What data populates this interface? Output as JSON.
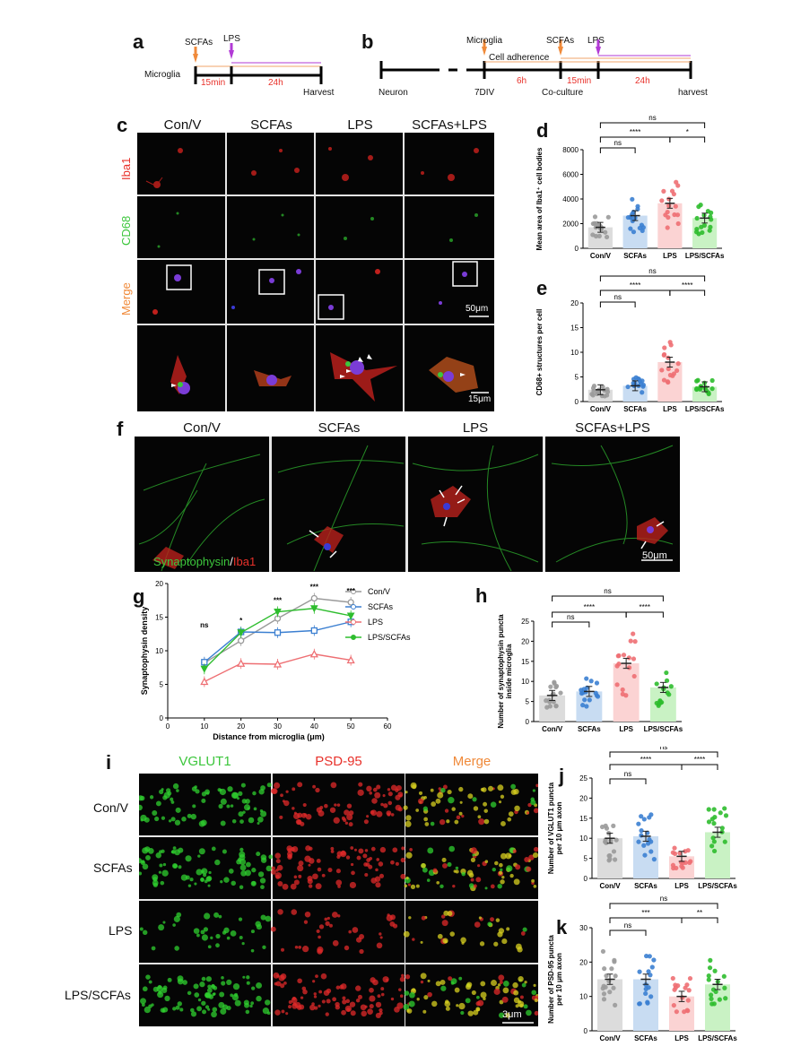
{
  "panel_labels": {
    "a": "a",
    "b": "b",
    "c": "c",
    "d": "d",
    "e": "e",
    "f": "f",
    "g": "g",
    "h": "h",
    "i": "i",
    "j": "j",
    "k": "k"
  },
  "panel_a": {
    "scfas": "SCFAs",
    "lps": "LPS",
    "microglia": "Microglia",
    "t1": "15min",
    "t2": "24h",
    "harvest": "Harvest"
  },
  "panel_b": {
    "microglia": "Microglia",
    "scfas": "SCFAs",
    "lps": "LPS",
    "cell_adherence": "Cell adherence",
    "neuron": "Neuron",
    "div": "7DIV",
    "t1": "6h",
    "coculture": "Co-culture",
    "t2": "15min",
    "t3": "24h",
    "harvest": "harvest"
  },
  "panel_c": {
    "cols": [
      "Con/V",
      "SCFAs",
      "LPS",
      "SCFAs+LPS"
    ],
    "rows": [
      "Iba1",
      "CD68",
      "Merge"
    ],
    "scale1": "50μm",
    "scale2": "15μm"
  },
  "panel_f": {
    "cols": [
      "Con/V",
      "SCFAs",
      "LPS",
      "SCFAs+LPS"
    ],
    "label_green": "Synaptophysin",
    "label_sep": "/",
    "label_red": "Iba1",
    "scale": "50μm"
  },
  "panel_i": {
    "cols": [
      "VGLUT1",
      "PSD-95",
      "Merge"
    ],
    "rows": [
      "Con/V",
      "SCFAs",
      "LPS",
      "LPS/SCFAs"
    ],
    "scale": "3μm"
  },
  "chart_data": [
    {
      "id": "d",
      "type": "bar",
      "categories": [
        "Con/V",
        "SCFAs",
        "LPS",
        "LPS/SCFAs"
      ],
      "values": [
        1700,
        2650,
        3650,
        2450
      ],
      "ylabel": "Mean area of Iba1⁺ cell bodies",
      "ylim": [
        0,
        8000
      ],
      "yticks": [
        0,
        2000,
        4000,
        6000,
        8000
      ],
      "sig": [
        {
          "from": 0,
          "to": 1,
          "label": "ns"
        },
        {
          "from": 0,
          "to": 2,
          "label": "****"
        },
        {
          "from": 2,
          "to": 3,
          "label": "*"
        },
        {
          "from": 0,
          "to": 3,
          "label": "ns"
        }
      ]
    },
    {
      "id": "e",
      "type": "bar",
      "categories": [
        "Con/V",
        "SCFAs",
        "LPS",
        "LPS/SCFAs"
      ],
      "values": [
        2.4,
        3.2,
        8.0,
        3.0
      ],
      "ylabel": "CD68+ structures per cell",
      "ylim": [
        0,
        20
      ],
      "yticks": [
        0,
        5,
        10,
        15,
        20
      ],
      "sig": [
        {
          "from": 0,
          "to": 1,
          "label": "ns"
        },
        {
          "from": 0,
          "to": 2,
          "label": "****"
        },
        {
          "from": 2,
          "to": 3,
          "label": "****"
        },
        {
          "from": 0,
          "to": 3,
          "label": "ns"
        }
      ]
    },
    {
      "id": "g",
      "type": "line",
      "x": [
        10,
        20,
        30,
        40,
        50
      ],
      "xlabel": "Distance from microglia (μm)",
      "ylabel": "Synaptophysin density",
      "xlim": [
        0,
        60
      ],
      "ylim": [
        0,
        20
      ],
      "xticks": [
        0,
        10,
        20,
        30,
        40,
        50,
        60
      ],
      "yticks": [
        0,
        5,
        10,
        15,
        20
      ],
      "series": [
        {
          "name": "Con/V",
          "values": [
            8.2,
            11.5,
            14.8,
            17.8,
            17.2
          ]
        },
        {
          "name": "SCFAs",
          "values": [
            8.3,
            12.8,
            12.7,
            13.0,
            14.3
          ]
        },
        {
          "name": "LPS",
          "values": [
            5.4,
            8.1,
            8.0,
            9.5,
            8.6
          ]
        },
        {
          "name": "LPS/SCFAs",
          "values": [
            7.3,
            12.7,
            15.8,
            16.3,
            15.2
          ]
        }
      ],
      "annotations": [
        {
          "x": 10,
          "label": "ns"
        },
        {
          "x": 20,
          "label": "*"
        },
        {
          "x": 30,
          "label": "***"
        },
        {
          "x": 40,
          "label": "***"
        },
        {
          "x": 50,
          "label": "***"
        }
      ]
    },
    {
      "id": "h",
      "type": "bar",
      "categories": [
        "Con/V",
        "SCFAs",
        "LPS",
        "LPS/SCFAs"
      ],
      "values": [
        6.5,
        7.5,
        14.5,
        8.5
      ],
      "ylabel": "Number of synaptophysin puncta inside microglia",
      "ylim": [
        0,
        25
      ],
      "yticks": [
        0,
        5,
        10,
        15,
        20,
        25
      ],
      "sig": [
        {
          "from": 0,
          "to": 1,
          "label": "ns"
        },
        {
          "from": 0,
          "to": 2,
          "label": "****"
        },
        {
          "from": 2,
          "to": 3,
          "label": "****"
        },
        {
          "from": 0,
          "to": 3,
          "label": "ns"
        }
      ]
    },
    {
      "id": "j",
      "type": "bar",
      "categories": [
        "Con/V",
        "SCFAs",
        "LPS",
        "LPS/SCFAs"
      ],
      "values": [
        10,
        10.5,
        5.5,
        11.5
      ],
      "ylabel": "Number of VGLUT1 puncta per 10 μm axon",
      "ylim": [
        0,
        25
      ],
      "yticks": [
        0,
        5,
        10,
        15,
        20,
        25
      ],
      "sig": [
        {
          "from": 0,
          "to": 1,
          "label": "ns"
        },
        {
          "from": 0,
          "to": 2,
          "label": "****"
        },
        {
          "from": 2,
          "to": 3,
          "label": "****"
        },
        {
          "from": 0,
          "to": 3,
          "label": "ns"
        }
      ]
    },
    {
      "id": "k",
      "type": "bar",
      "categories": [
        "Con/V",
        "SCFAs",
        "LPS",
        "LPS/SCFAs"
      ],
      "values": [
        15,
        15,
        10,
        13.5
      ],
      "ylabel": "Number of PSD-95 puncta per 10 μm axon",
      "ylim": [
        0,
        30
      ],
      "yticks": [
        0,
        10,
        20,
        30
      ],
      "sig": [
        {
          "from": 0,
          "to": 1,
          "label": "ns"
        },
        {
          "from": 0,
          "to": 2,
          "label": "***"
        },
        {
          "from": 2,
          "to": 3,
          "label": "**"
        },
        {
          "from": 0,
          "to": 3,
          "label": "ns"
        }
      ]
    }
  ],
  "colors": {
    "con": "#9a9a9a",
    "scfas": "#3b7fd1",
    "lps": "#ee6f73",
    "lpsscfas": "#2ebd2e",
    "red": "#e8312a",
    "green": "#3cc63c",
    "orange": "#f08a3a",
    "purple": "#b23ad6"
  }
}
